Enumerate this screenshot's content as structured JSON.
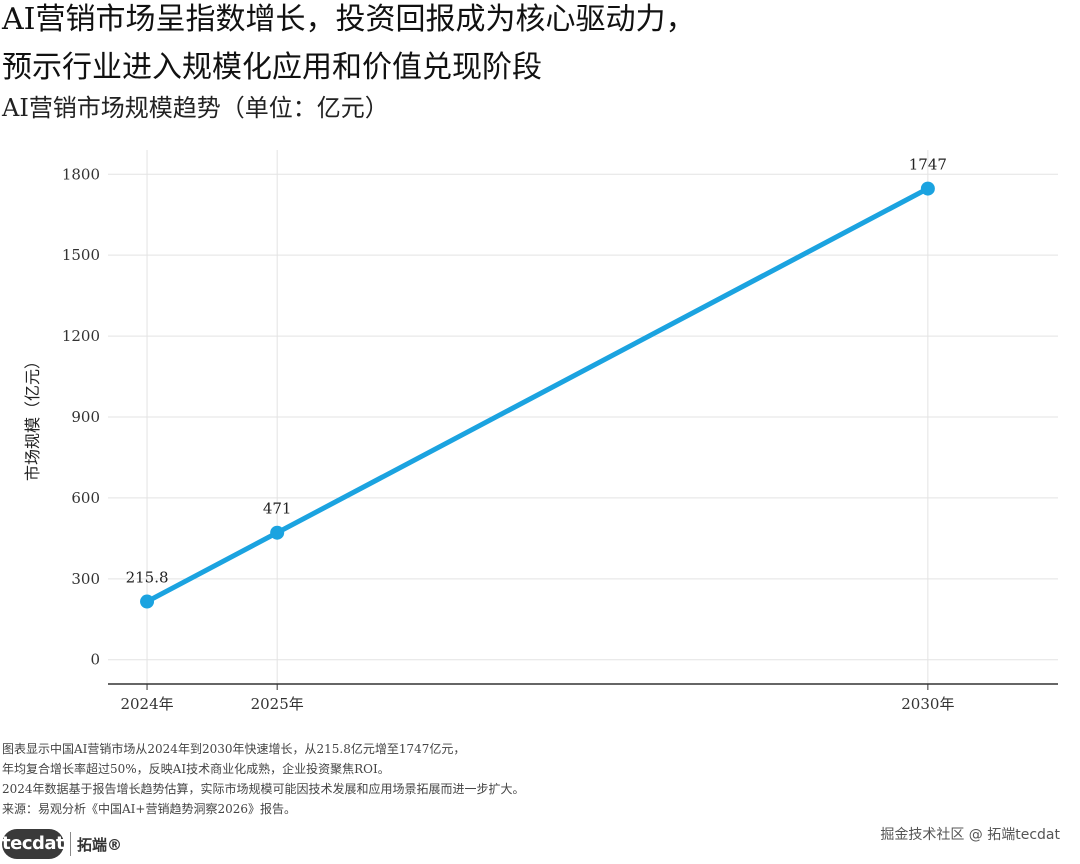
{
  "title_lines": [
    "AI营销市场呈指数增长，投资回报成为核心驱动力，",
    "预示行业进入规模化应用和价值兑现阶段"
  ],
  "subtitle": "AI营销市场规模趋势（单位：亿元）",
  "notes": [
    "图表显示中国AI营销市场从2024年到2030年快速增长，从215.8亿元增至1747亿元，",
    "年均复合增长率超过50%，反映AI技术商业化成熟，企业投资聚焦ROI。",
    "2024年数据基于报告增长趋势估算，实际市场规模可能因技术发展和应用场景拓展而进一步扩大。",
    "来源：易观分析《中国AI+营销趋势洞察2026》报告。"
  ],
  "logo": {
    "mark": "tecdat",
    "cn": "拓端®"
  },
  "watermark": "掘金技术社区 @ 拓端tecdat",
  "colors": {
    "series": "#1ba3e0",
    "grid": "#e3e3e3",
    "axis": "#333333"
  },
  "chart_data": {
    "type": "line",
    "x": [
      2024,
      2025,
      2030
    ],
    "x_tick_labels": [
      "2024年",
      "2025年",
      "2030年"
    ],
    "series": [
      {
        "values": [
          215.8,
          471,
          1747
        ],
        "data_labels": [
          "215.8",
          "471",
          "1747"
        ]
      }
    ],
    "ylabel": "市场规模（亿元）",
    "yticks": [
      0,
      300,
      600,
      900,
      1200,
      1500,
      1800
    ],
    "ylim": [
      -90,
      1890
    ],
    "xlim": [
      2023.7,
      2031.0
    ],
    "grid": true,
    "markers": true
  }
}
